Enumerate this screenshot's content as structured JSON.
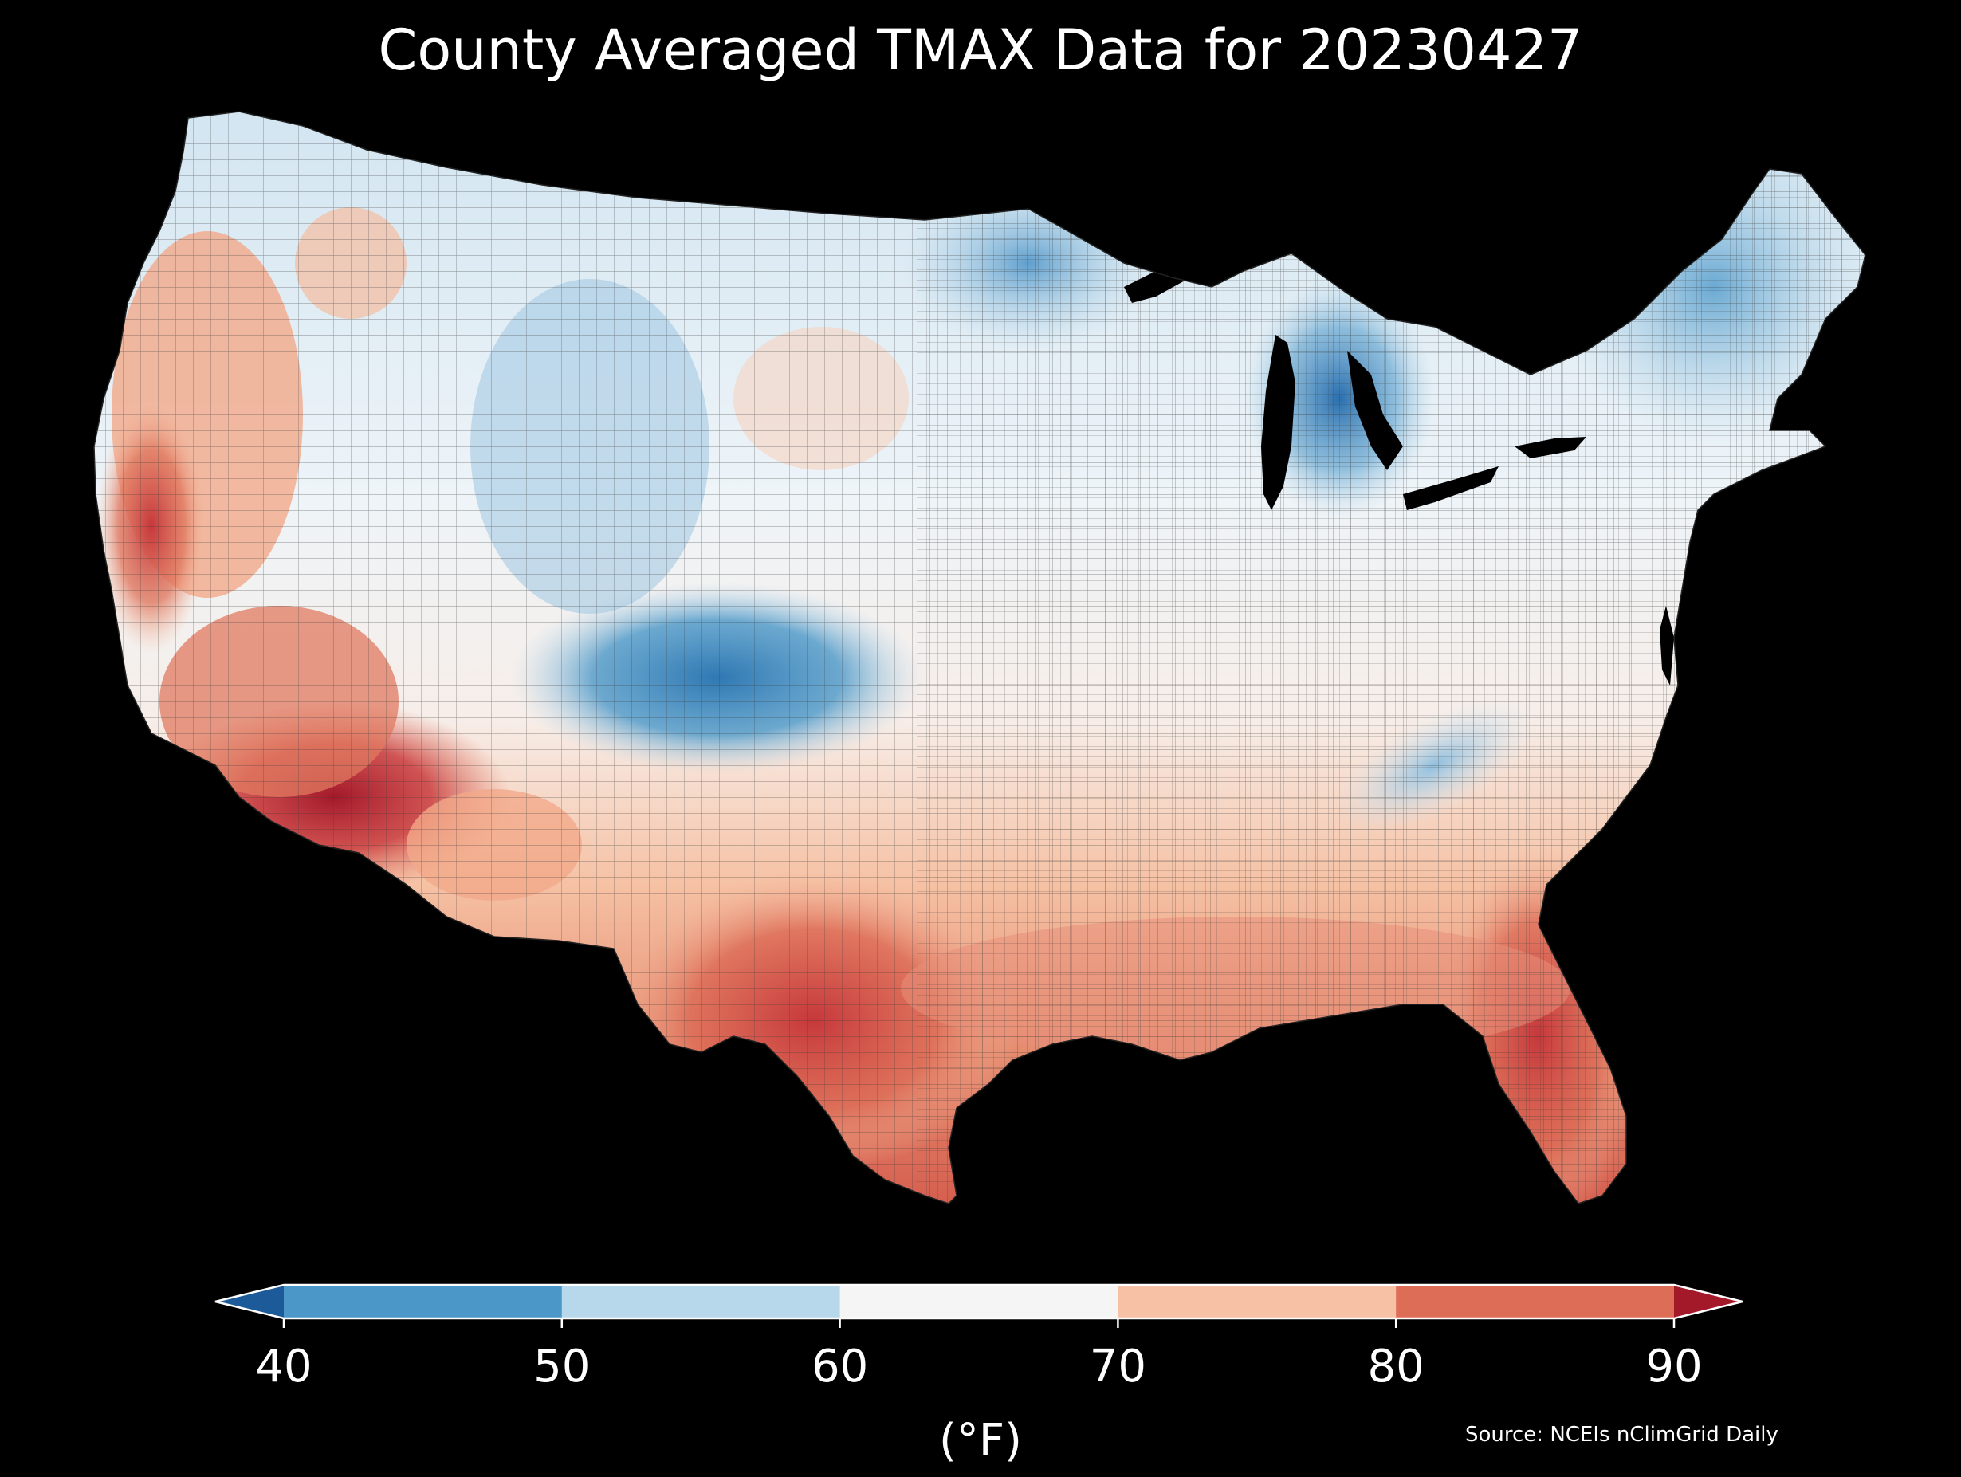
{
  "title": "County Averaged TMAX Data for 20230427",
  "colorbar": {
    "unit": "(°F)",
    "ticks": [
      "40",
      "50",
      "60",
      "70",
      "80",
      "90"
    ],
    "bins": [
      {
        "range": "<40",
        "color": "#1c5a9a"
      },
      {
        "range": "40-50",
        "color": "#4a97c8"
      },
      {
        "range": "50-60",
        "color": "#b7d7ea"
      },
      {
        "range": "60-70",
        "color": "#f5f5f5"
      },
      {
        "range": "70-80",
        "color": "#f6c1a4"
      },
      {
        "range": "80-90",
        "color": "#dd6d57"
      },
      {
        "range": ">90",
        "color": "#a3192a"
      }
    ],
    "extend": "both"
  },
  "source": "Source: NCEIs nClimGrid Daily",
  "map": {
    "region": "Contiguous United States",
    "unit_level": "county",
    "variable": "TMAX",
    "background": "#000000",
    "border_color": "#2a2a2a",
    "lakes_color": "#000000"
  }
}
